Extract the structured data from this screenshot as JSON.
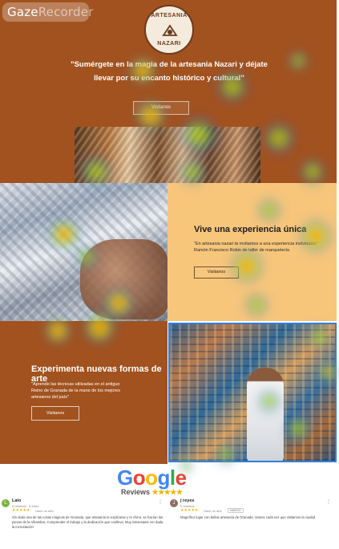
{
  "recorder_badge": {
    "part1": "Gaze",
    "part2": "Recorder"
  },
  "logo": {
    "top_text": "ARTESANIA",
    "bottom_text": "NAZARI"
  },
  "hero": {
    "quote_line1": "\"Sumérgete en la magia de la artesania Nazari y déjate",
    "quote_line2": "llevar por su encanto histórico y cultural\"",
    "button_label": "Visitanos"
  },
  "experience": {
    "title": "Vive una experiencia única",
    "quote": "\"En artesania nazari te invitamos a una experiencia inolvidable\" Ramón Francisco Robin de taller de marquetería",
    "button_label": "Visitanos"
  },
  "art": {
    "title": "Experimenta nuevas formas de arte",
    "quote": "\"Aprende las técnicas utilizadas en el antiguo Reino de Granada de la mano de los mejores artesanos del país\"",
    "button_label": "Visitanos"
  },
  "reviews": {
    "brand": [
      "G",
      "o",
      "o",
      "g",
      "l",
      "e"
    ],
    "brand_colors": [
      "#4285f4",
      "#ea4335",
      "#fbbc05",
      "#4285f4",
      "#34a853",
      "#ea4335"
    ],
    "label": "Reviews",
    "label_stars": "★★★★★",
    "items": [
      {
        "initial": "L",
        "name": "Lalo",
        "meta": "8 reseñas · 5 fotos",
        "stars": "★★★★★",
        "when": "Hace un año",
        "tag": "",
        "text": "Sin duda una de las cosas mágicas de Granada, que artesanía te explicaran y te chino, se hacían las piezas de la Alhambra. Comprender el trabajo y la dedicación que conlleva. Muy interesante ver dada la incrustación"
      },
      {
        "initial": "J",
        "name": "j reyes",
        "meta": "5 reseñas",
        "stars": "★★★★★",
        "when": "Hace un año",
        "tag": "NUEVO",
        "text": "Magnífico lugar con bellas artesanía de Granada. Vamos cada vez que visitamos la ciudad"
      }
    ]
  },
  "heatmap_colors": {
    "hot": "#ff1e00",
    "warm": "#ffd200",
    "mid": "#5ad11e",
    "cool": "#3246d2"
  }
}
